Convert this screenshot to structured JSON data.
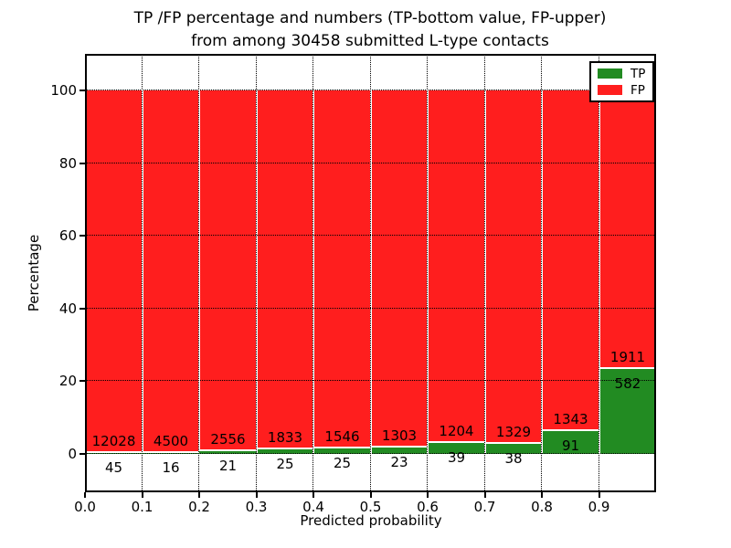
{
  "figure": {
    "title_line1": "TP /FP percentage and numbers (TP-bottom value, FP-upper)",
    "title_line2": "from among 30458 submitted L-type contacts"
  },
  "chart_data": {
    "type": "bar",
    "stacked": true,
    "normalized_to_100_percent": true,
    "title": "TP /FP percentage and numbers (TP-bottom value, FP-upper) from among 30458 submitted L-type contacts",
    "xlabel": "Predicted probability",
    "ylabel": "Percentage",
    "total_submitted_contacts": 30458,
    "bin_width": 0.1,
    "xlim": [
      0.0,
      1.0
    ],
    "ylim": [
      -11,
      110
    ],
    "x_bin_starts": [
      0.0,
      0.1,
      0.2,
      0.3,
      0.4,
      0.5,
      0.6,
      0.7,
      0.8,
      0.9
    ],
    "xtick_labels": [
      "0.0",
      "0.1",
      "0.2",
      "0.3",
      "0.4",
      "0.5",
      "0.6",
      "0.7",
      "0.8",
      "0.9"
    ],
    "ytick_values": [
      0,
      20,
      40,
      60,
      80,
      100
    ],
    "ytick_labels": [
      "0",
      "20",
      "40",
      "60",
      "80",
      "100"
    ],
    "grid": {
      "visible": true,
      "style": "dotted",
      "color": "#000000"
    },
    "series": [
      {
        "name": "TP",
        "color": "#228b22",
        "counts": [
          45,
          16,
          21,
          25,
          25,
          23,
          39,
          38,
          91,
          582
        ]
      },
      {
        "name": "FP",
        "color": "#ff1e1e",
        "counts": [
          12028,
          4500,
          2556,
          1833,
          1546,
          1303,
          1204,
          1329,
          1343,
          1911
        ]
      }
    ],
    "bar_edge_color": "#ffffff",
    "annotation_note": "FP count printed just above each red segment bottom, TP count printed just below each green segment top",
    "legend": {
      "position": "upper-right",
      "entries": [
        {
          "label": "TP",
          "color": "#228b22"
        },
        {
          "label": "FP",
          "color": "#ff1e1e"
        }
      ]
    }
  }
}
